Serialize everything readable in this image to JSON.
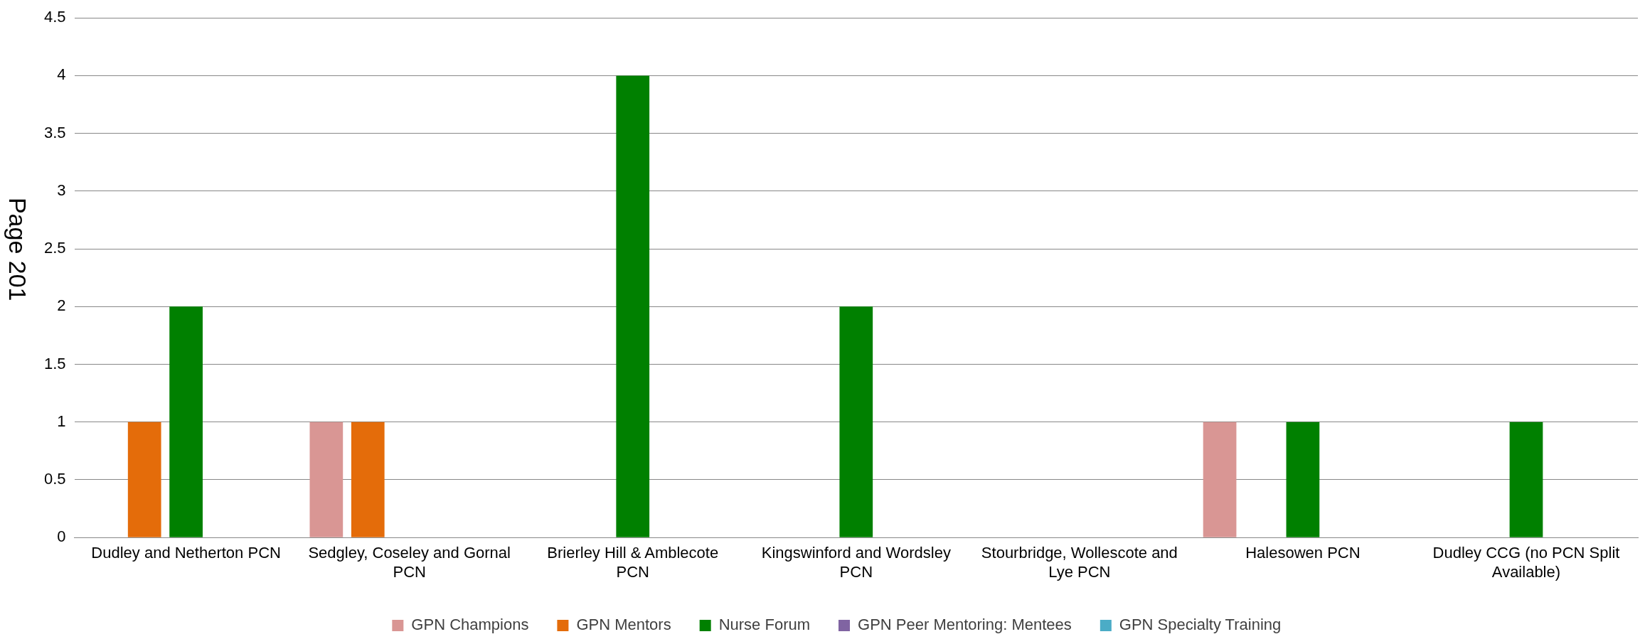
{
  "chart_data": {
    "type": "bar",
    "categories": [
      "Dudley and Netherton PCN",
      "Sedgley, Coseley and Gornal PCN",
      "Brierley Hill & Amblecote PCN",
      "Kingswinford and Wordsley PCN",
      "Stourbridge, Wollescote and Lye PCN",
      "Halesowen PCN",
      "Dudley CCG (no PCN Split Available)"
    ],
    "series": [
      {
        "name": "GPN Champions",
        "color": "#d99694",
        "values": [
          0,
          1,
          0,
          0,
          0,
          1,
          0
        ]
      },
      {
        "name": "GPN Mentors",
        "color": "#e46c0a",
        "values": [
          1,
          1,
          0,
          0,
          0,
          0,
          0
        ]
      },
      {
        "name": "Nurse Forum",
        "color": "#008000",
        "values": [
          2,
          0,
          4,
          2,
          0,
          1,
          1
        ]
      },
      {
        "name": "GPN Peer Mentoring: Mentees",
        "color": "#8064a2",
        "values": [
          0,
          0,
          0,
          0,
          0,
          0,
          0
        ]
      },
      {
        "name": "GPN Specialty Training",
        "color": "#4bacc6",
        "values": [
          0,
          0,
          0,
          0,
          0,
          0,
          0
        ]
      }
    ],
    "ylim": [
      0,
      4.5
    ],
    "yticks": [
      0,
      0.5,
      1,
      1.5,
      2,
      2.5,
      3,
      3.5,
      4,
      4.5
    ],
    "grid": "y",
    "legend": "bottom",
    "annotations": [
      "Page 201"
    ]
  }
}
